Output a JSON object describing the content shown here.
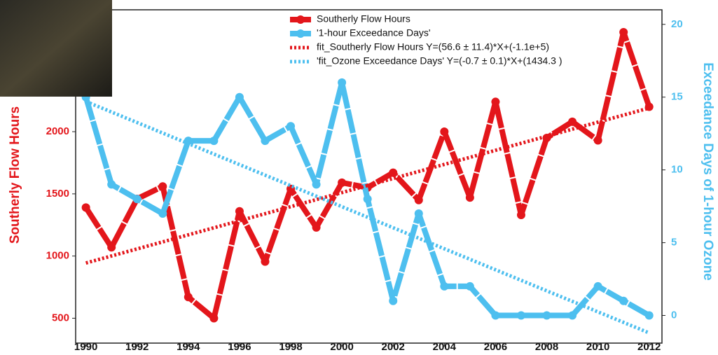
{
  "chart_data": {
    "type": "line",
    "y_label": "Southerly Flow Hours",
    "y2_label": "Exceedance Days of 1-hour  Ozone",
    "x": [
      1990,
      1991,
      1992,
      1993,
      1994,
      1995,
      1996,
      1997,
      1998,
      1999,
      2000,
      2001,
      2002,
      2003,
      2004,
      2005,
      2006,
      2007,
      2008,
      2009,
      2010,
      2011,
      2012
    ],
    "series": [
      {
        "name": "Southerly Flow Hours",
        "color": "#e3161b",
        "style": "solid",
        "values": [
          1390,
          1070,
          1460,
          1560,
          670,
          500,
          1360,
          955,
          1540,
          1230,
          1590,
          1550,
          1670,
          1450,
          2000,
          1470,
          2240,
          1330,
          1950,
          2080,
          1930,
          2800,
          2200
        ]
      },
      {
        "name": "'1-hour Exceedance Days'",
        "color": "#4dbfef",
        "style": "solid",
        "axis": "y2",
        "values": [
          15,
          9,
          8,
          7,
          12,
          12,
          15,
          12,
          13,
          9,
          16,
          8,
          1,
          7,
          2,
          2,
          0,
          0,
          0,
          0,
          2,
          1,
          0
        ]
      },
      {
        "name": "fit_Southerly Flow Hours Y=(56.6 ± 11.4)*X+(-1.1e+5)",
        "color": "#e3161b",
        "style": "dotted",
        "x": [
          1990,
          2012
        ],
        "values": [
          944,
          2190
        ]
      },
      {
        "name": "'fit_Ozone Exceedance Days' Y=(-0.7 ± 0.1)*X+(1434.3 )",
        "color": "#4dbfef",
        "style": "dotted",
        "axis": "y2",
        "x": [
          1990,
          2012
        ],
        "values": [
          14.7,
          -1.2
        ]
      }
    ],
    "xlim": [
      1989.6,
      2012.5
    ],
    "xticks": [
      1990,
      1992,
      1994,
      1996,
      1998,
      2000,
      2002,
      2004,
      2006,
      2008,
      2010,
      2012
    ],
    "ylim": [
      300,
      2980
    ],
    "yticks": [
      500,
      1000,
      1500,
      2000
    ],
    "y2lim": [
      -1.9,
      21
    ],
    "y2ticks": [
      0,
      5,
      10,
      15,
      20
    ],
    "legend": "top-center"
  }
}
